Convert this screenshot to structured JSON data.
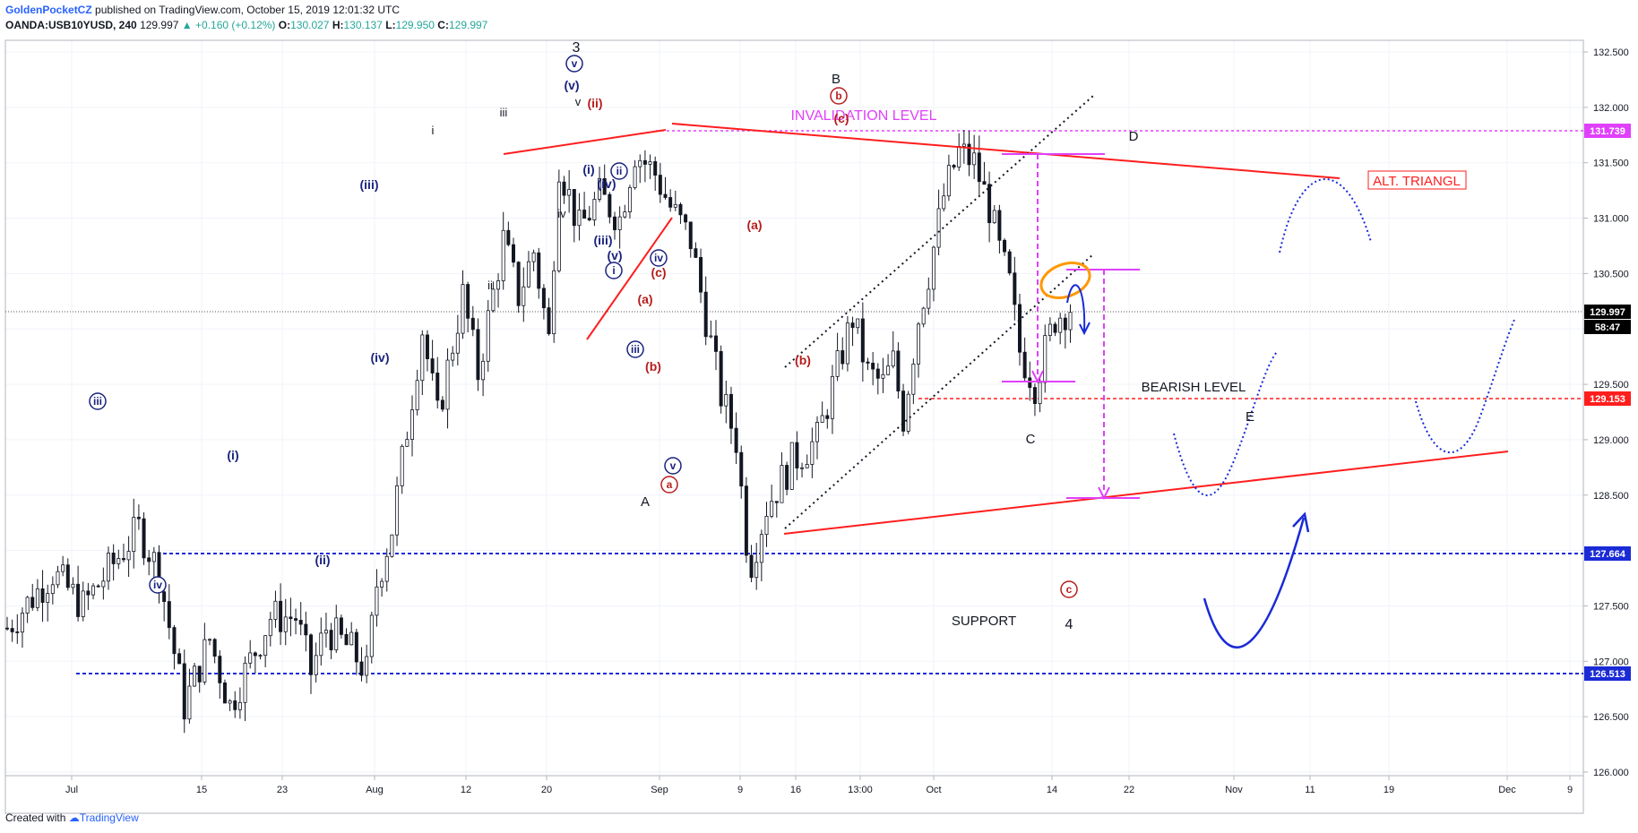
{
  "header": {
    "publisher": "GoldenPocketCZ",
    "published_text": "published on TradingView.com, October 15, 2019 12:01:32 UTC",
    "symbol": "OANDA:USB10YUSD, 240",
    "last": "129.997",
    "change": "▲ +0.160 (+0.12%)",
    "o_label": "O:",
    "o_value": "130.027",
    "h_label": "H:",
    "h_value": "130.137",
    "l_label": "L:",
    "l_value": "129.950",
    "c_label": "C:",
    "c_value": "129.997"
  },
  "footer": {
    "created_with": "Created with",
    "brand": "TradingView"
  },
  "colors": {
    "candle": "#131722",
    "red_line": "#ff1e1e",
    "blue_level": "#1a2bd6",
    "magenta": "#e040fb",
    "dark_red": "#b71c1c",
    "navy": "#1a237e",
    "orange": "#ff9800",
    "grid": "#f0f3fa"
  },
  "chart_data": {
    "type": "candlestick",
    "symbol": "OANDA:USB10YUSD",
    "timeframe": "240",
    "ylim": [
      125.5,
      132.8
    ],
    "y_ticks": [
      "126.000",
      "126.500",
      "127.000",
      "127.500",
      "128.000",
      "128.500",
      "129.000",
      "129.500",
      "130.000",
      "130.500",
      "131.000",
      "131.500",
      "132.000",
      "132.500"
    ],
    "x_ticks": [
      "Jul",
      "15",
      "23",
      "Aug",
      "12",
      "20",
      "Sep",
      "9",
      "16",
      "13:00",
      "Oct",
      "14",
      "22",
      "Nov",
      "11",
      "19",
      "Dec",
      "9"
    ],
    "price_labels": {
      "invalidation": "131.739",
      "current": "129.997",
      "countdown": "58:47",
      "bearish": "129.153",
      "support_upper": "127.664",
      "support_lower": "126.513"
    },
    "path": [
      [
        0,
        127.3
      ],
      [
        9,
        127.8
      ],
      [
        15,
        127.5
      ],
      [
        26,
        128.2
      ],
      [
        30,
        127.8
      ],
      [
        35,
        126.6
      ],
      [
        40,
        127.2
      ],
      [
        44,
        126.6
      ],
      [
        52,
        127.4
      ],
      [
        57,
        127.4
      ],
      [
        60,
        126.9
      ],
      [
        63,
        127.3
      ],
      [
        68,
        127.1
      ],
      [
        71,
        126.9
      ],
      [
        73,
        127.7
      ],
      [
        76,
        128.2
      ],
      [
        79,
        129.1
      ],
      [
        82,
        130.0
      ],
      [
        85,
        129.2
      ],
      [
        90,
        130.3
      ],
      [
        93,
        129.6
      ],
      [
        98,
        130.8
      ],
      [
        101,
        130.3
      ],
      [
        104,
        130.7
      ],
      [
        107,
        129.9
      ],
      [
        109,
        131.5
      ],
      [
        113,
        130.9
      ],
      [
        117,
        131.2
      ],
      [
        121,
        131.0
      ],
      [
        124,
        131.6
      ],
      [
        128,
        131.4
      ],
      [
        131,
        131.1
      ],
      [
        135,
        130.8
      ],
      [
        138,
        130.1
      ],
      [
        141,
        129.4
      ],
      [
        144,
        129.0
      ],
      [
        146,
        128.1
      ],
      [
        147,
        127.9
      ],
      [
        150,
        128.4
      ],
      [
        155,
        128.8
      ],
      [
        160,
        129.0
      ],
      [
        165,
        129.8
      ],
      [
        167,
        130.1
      ],
      [
        170,
        129.6
      ],
      [
        173,
        129.5
      ],
      [
        175,
        129.7
      ],
      [
        177,
        129.2
      ],
      [
        180,
        130.1
      ],
      [
        182,
        130.5
      ],
      [
        185,
        131.2
      ],
      [
        188,
        131.6
      ],
      [
        191,
        131.5
      ],
      [
        194,
        131.1
      ],
      [
        196,
        130.7
      ],
      [
        198,
        130.4
      ],
      [
        200,
        129.8
      ],
      [
        203,
        129.5
      ],
      [
        207,
        130.1
      ],
      [
        210,
        130.2
      ],
      [
        211,
        130.0
      ]
    ],
    "support_levels": [
      127.664,
      126.513
    ],
    "invalidation_level": 131.739,
    "bearish_level": 129.153,
    "current_price": 129.997
  },
  "annotations": {
    "invalidation_label": "INVALIDATION LEVEL",
    "bearish_label": "BEARISH LEVEL",
    "support_label": "SUPPORT",
    "alt_triangle_label": "ALT. TRIANGL",
    "wave_black": [
      {
        "text": "3",
        "x": 643,
        "y": 58,
        "size": 16
      },
      {
        "text": "B",
        "x": 933,
        "y": 93,
        "size": 15
      },
      {
        "text": "D",
        "x": 1265,
        "y": 157,
        "size": 15
      },
      {
        "text": "C",
        "x": 1150,
        "y": 495,
        "size": 15
      },
      {
        "text": "E",
        "x": 1395,
        "y": 470,
        "size": 15
      },
      {
        "text": "A",
        "x": 720,
        "y": 565,
        "size": 15
      },
      {
        "text": "4",
        "x": 1193,
        "y": 702,
        "size": 16
      },
      {
        "text": "i",
        "x": 483,
        "y": 150,
        "size": 13
      },
      {
        "text": "iii",
        "x": 562,
        "y": 130,
        "size": 13
      },
      {
        "text": "v",
        "x": 645,
        "y": 118,
        "size": 13
      },
      {
        "text": "iv",
        "x": 627,
        "y": 243,
        "size": 13
      },
      {
        "text": "ii",
        "x": 547,
        "y": 323,
        "size": 13
      }
    ],
    "wave_blue": [
      {
        "text": "(iii)",
        "x": 412,
        "y": 211
      },
      {
        "text": "(iv)",
        "x": 424,
        "y": 404
      },
      {
        "text": "(i)",
        "x": 260,
        "y": 513
      },
      {
        "text": "(ii)",
        "x": 360,
        "y": 630
      },
      {
        "text": "(v)",
        "x": 638,
        "y": 100
      },
      {
        "text": "(i)",
        "x": 657,
        "y": 194
      },
      {
        "text": "(iv)",
        "x": 677,
        "y": 210
      },
      {
        "text": "(iii)",
        "x": 673,
        "y": 273
      },
      {
        "text": "(v)",
        "x": 686,
        "y": 290
      }
    ],
    "wave_blue_circled": [
      {
        "text": "iii",
        "x": 109,
        "y": 452
      },
      {
        "text": "iv",
        "x": 176,
        "y": 657
      },
      {
        "text": "v",
        "x": 641,
        "y": 75
      },
      {
        "text": "ii",
        "x": 691,
        "y": 195
      },
      {
        "text": "i",
        "x": 685,
        "y": 306
      },
      {
        "text": "iii",
        "x": 709,
        "y": 394
      },
      {
        "text": "iv",
        "x": 735,
        "y": 292
      },
      {
        "text": "v",
        "x": 751,
        "y": 524
      }
    ],
    "wave_red": [
      {
        "text": "(ii)",
        "x": 664,
        "y": 120
      },
      {
        "text": "(c)",
        "x": 939,
        "y": 137
      },
      {
        "text": "(a)",
        "x": 842,
        "y": 256
      },
      {
        "text": "(c)",
        "x": 735,
        "y": 309
      },
      {
        "text": "(a)",
        "x": 720,
        "y": 339
      },
      {
        "text": "(b)",
        "x": 729,
        "y": 414
      },
      {
        "text": "(b)",
        "x": 896,
        "y": 407
      }
    ],
    "wave_red_circled": [
      {
        "text": "b",
        "x": 936,
        "y": 111
      },
      {
        "text": "a",
        "x": 747,
        "y": 545
      },
      {
        "text": "c",
        "x": 1193,
        "y": 662
      }
    ]
  }
}
